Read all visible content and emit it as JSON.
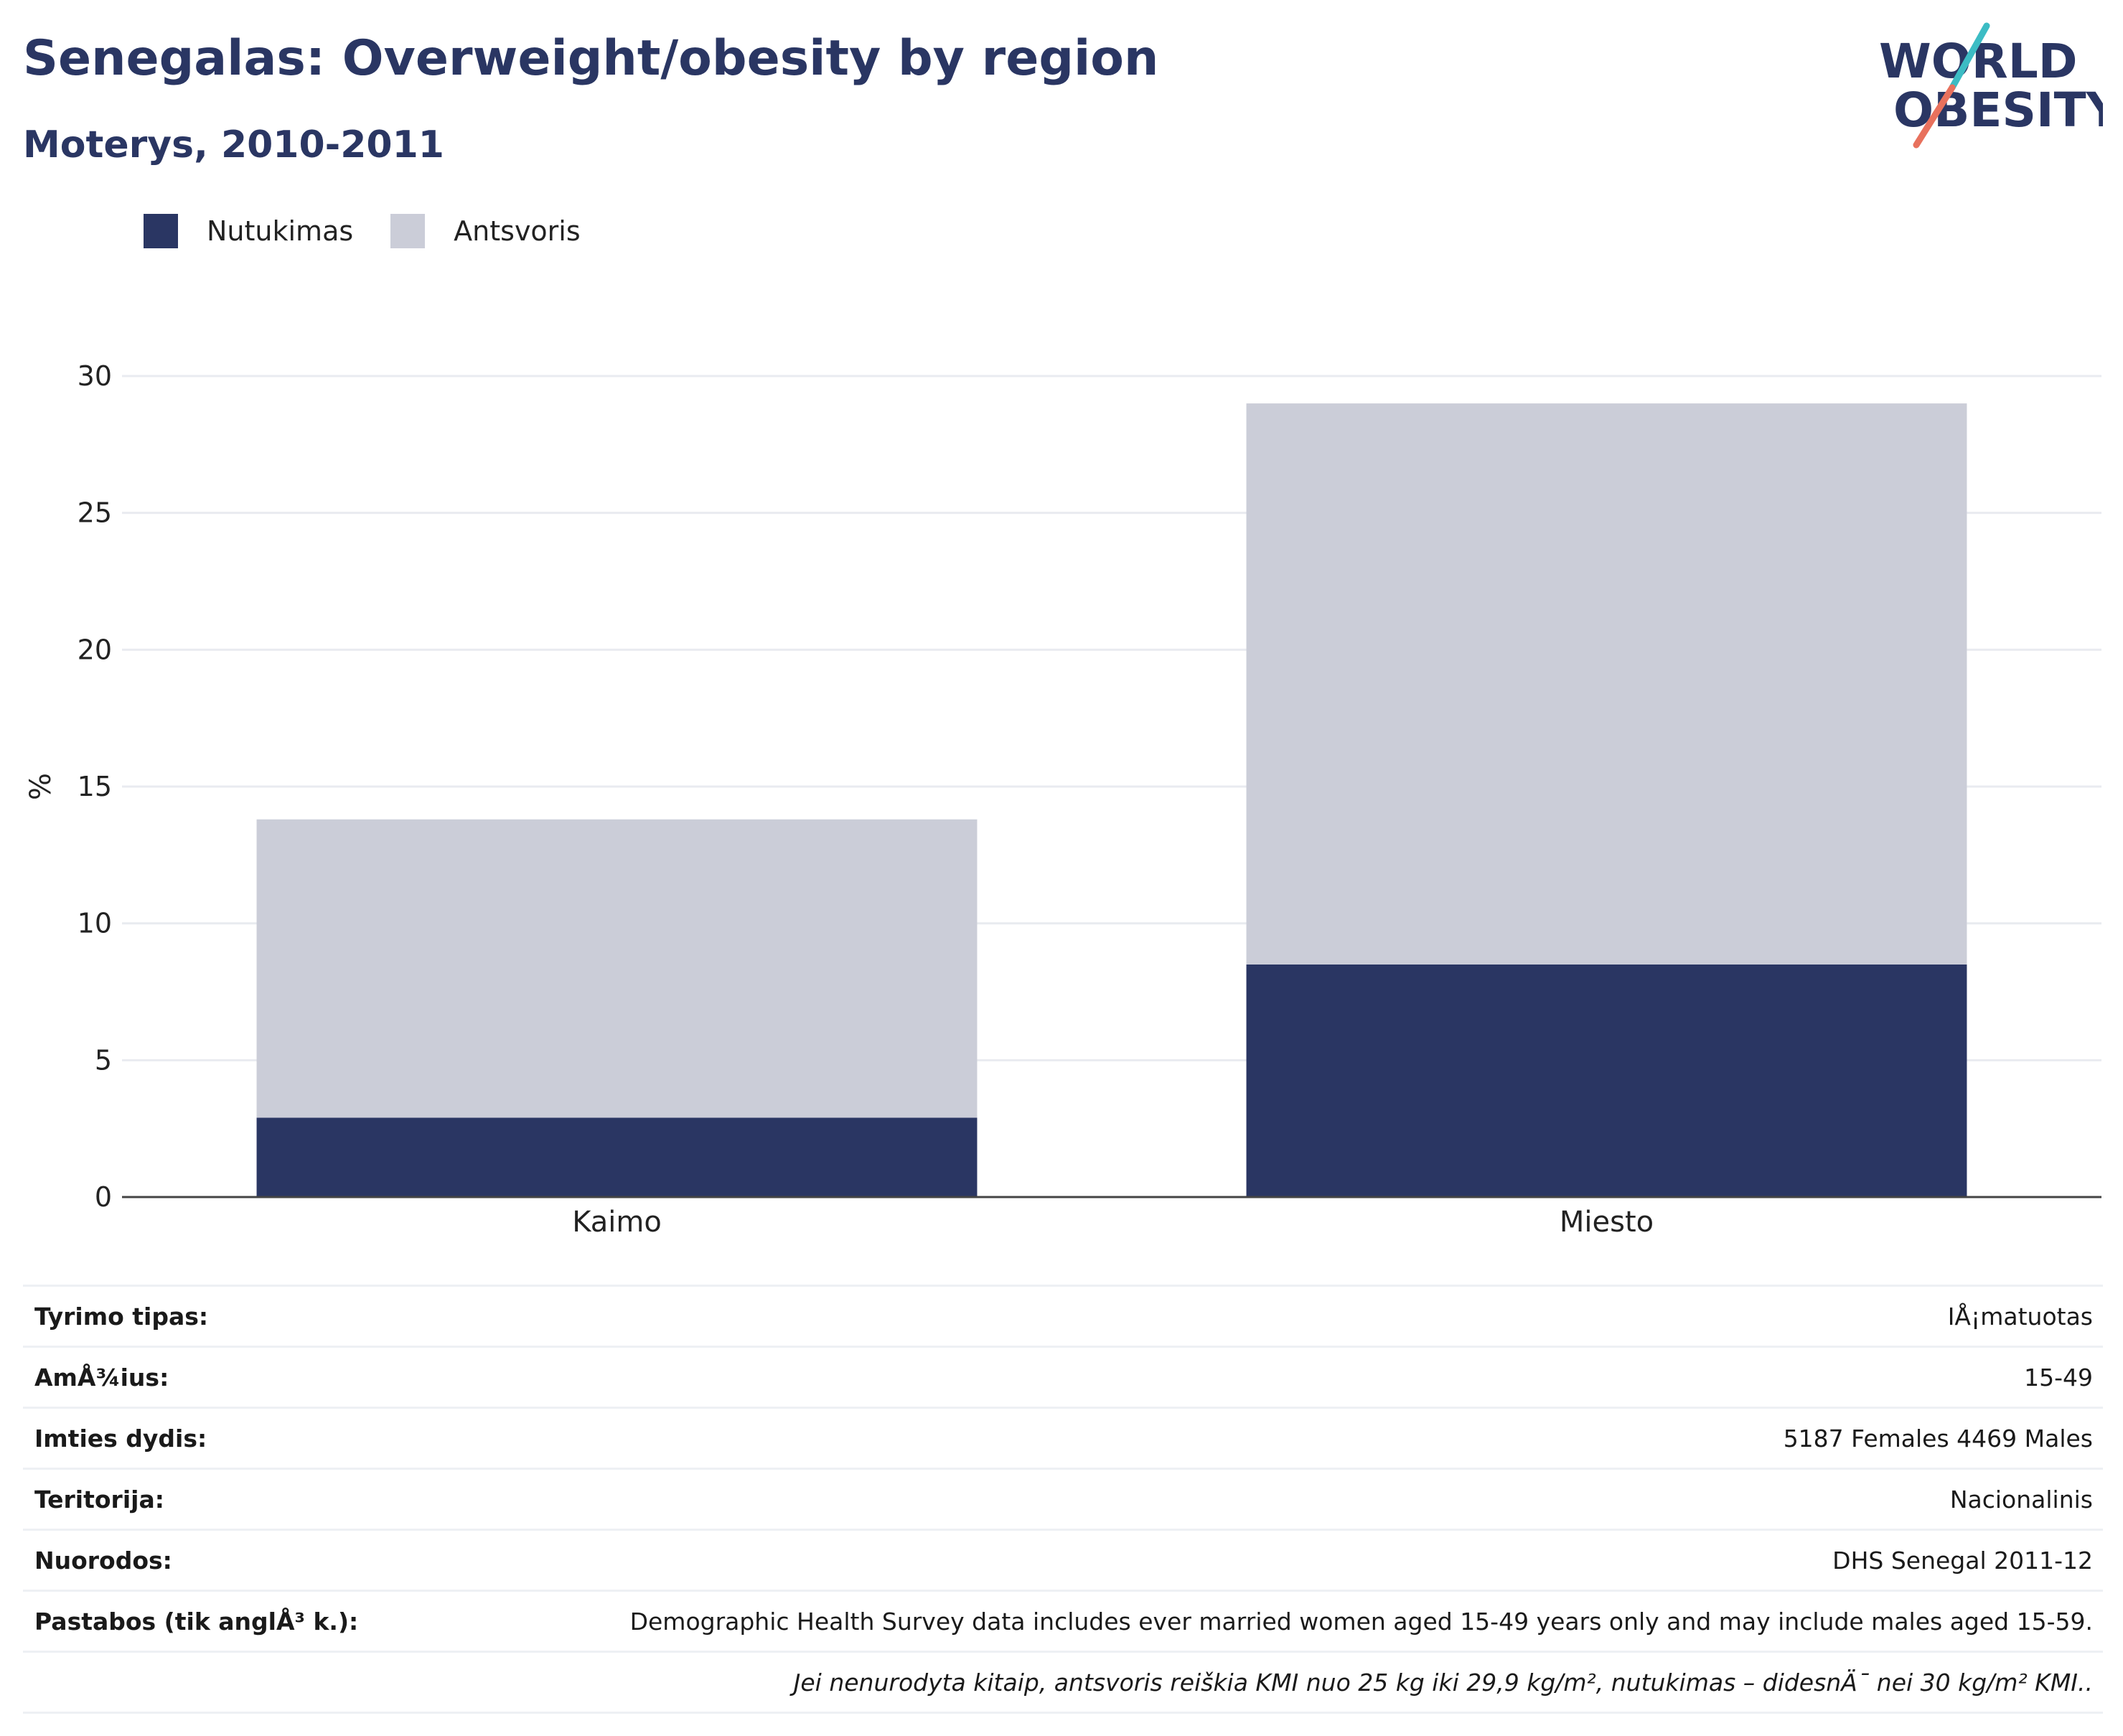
{
  "header": {
    "title": "Senegalas: Overweight/obesity by region",
    "subtitle": "Moterys, 2010-2011"
  },
  "logo": {
    "line1": "WORLD",
    "line2": "OBESITY"
  },
  "colors": {
    "obesity": "#2a3663",
    "overweight": "#cbcdd8",
    "title": "#2a3663",
    "logo_teal": "#3cbcc4",
    "logo_coral": "#e8715d"
  },
  "chart_data": {
    "type": "bar",
    "stacked": true,
    "categories": [
      "Kaimo",
      "Miesto"
    ],
    "series": [
      {
        "name": "Nutukimas",
        "values": [
          2.9,
          8.5
        ]
      },
      {
        "name": "Antsvoris",
        "values": [
          10.9,
          20.5
        ]
      }
    ],
    "ylabel": "%",
    "ylim": [
      0,
      30
    ],
    "yticks": [
      "0",
      "5",
      "10",
      "15",
      "20",
      "25",
      "30"
    ],
    "grid": true,
    "legend_position": "top-left"
  },
  "meta": {
    "rows": [
      {
        "label": "Tyrimo tipas:",
        "value": "IÅ¡matuotas"
      },
      {
        "label": "AmÅ¾ius:",
        "value": "15-49"
      },
      {
        "label": "Imties dydis:",
        "value": "5187 Females 4469 Males"
      },
      {
        "label": "Teritorija:",
        "value": "Nacionalinis"
      },
      {
        "label": "Nuorodos:",
        "value": "DHS Senegal 2011-12"
      },
      {
        "label": "Pastabos (tik anglÅ³ k.):",
        "value": "Demographic Health Survey data includes ever married women aged 15-49 years only and may include males aged 15-59."
      }
    ],
    "note": "Jei nenurodyta kitaip, antsvoris reiškia KMI nuo 25 kg iki 29,9 kg/m², nutukimas – didesnÄ¯ nei 30 kg/m² KMI.."
  }
}
